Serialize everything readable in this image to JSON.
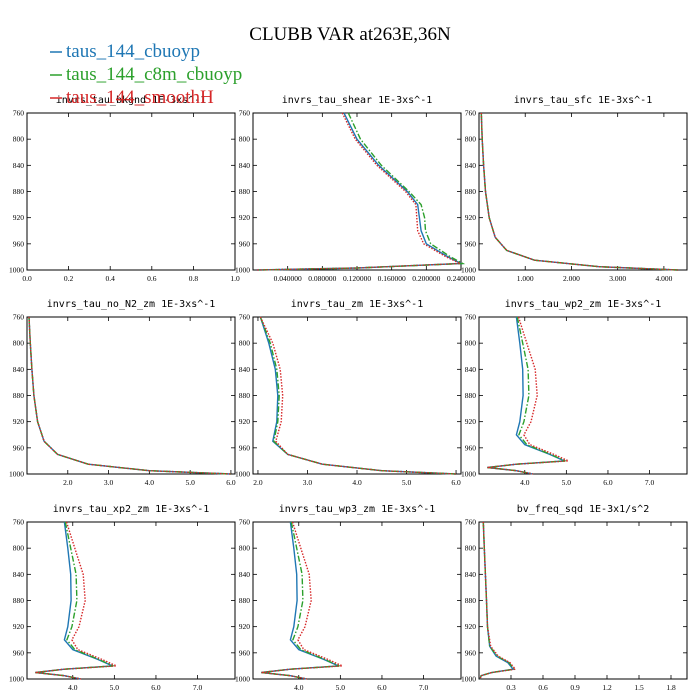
{
  "figure": {
    "title": "CLUBB VAR at263E,36N"
  },
  "legend": [
    {
      "label": "taus_144_cbuoyp",
      "color": "#1f77b4",
      "dash": "solid"
    },
    {
      "label": "taus_144_c8m_cbuoyp",
      "color": "#2ca02c",
      "dash": "dashdot"
    },
    {
      "label": "taus_144_smoothH",
      "color": "#d62728",
      "dash": "dotted"
    }
  ],
  "chart_data": [
    {
      "type": "line",
      "title": "invrs_tau_bkgnd 1E-3xs^-1",
      "xlim": [
        0,
        1
      ],
      "ylim": [
        760,
        1000
      ],
      "xticks": [
        "0.0",
        "0.2",
        "0.4",
        "0.6",
        "0.8",
        "1.0"
      ],
      "xtick_values": [
        0,
        0.2,
        0.4,
        0.6,
        0.8,
        1.0
      ],
      "yticks": [
        "760",
        "800",
        "840",
        "880",
        "920",
        "960",
        "1000"
      ],
      "ytick_values": [
        760,
        800,
        840,
        880,
        920,
        960,
        1000
      ],
      "series": []
    },
    {
      "type": "line",
      "title": "invrs_tau_shear 1E-3xs^-1",
      "xlim": [
        0.0,
        0.24
      ],
      "ylim": [
        760,
        1000
      ],
      "xticks": [
        "0.040000",
        "0.080000",
        "0.120000",
        "0.160000",
        "0.200000",
        "0.240000"
      ],
      "xtick_values": [
        0.04,
        0.08,
        0.12,
        0.16,
        0.2,
        0.24
      ],
      "yticks": [
        "760",
        "800",
        "840",
        "880",
        "920",
        "960",
        "1000"
      ],
      "ytick_values": [
        760,
        800,
        840,
        880,
        920,
        960,
        1000
      ],
      "series": [
        {
          "name": "taus_144_cbuoyp",
          "y": [
            760,
            800,
            840,
            880,
            900,
            920,
            940,
            960,
            980,
            990,
            997,
            1000
          ],
          "values": [
            0.105,
            0.12,
            0.145,
            0.178,
            0.19,
            0.192,
            0.194,
            0.2,
            0.225,
            0.24,
            0.12,
            0.005
          ]
        },
        {
          "name": "taus_144_c8m_cbuoyp",
          "y": [
            760,
            800,
            840,
            880,
            900,
            920,
            940,
            960,
            980,
            990,
            997,
            1000
          ],
          "values": [
            0.11,
            0.124,
            0.148,
            0.18,
            0.194,
            0.198,
            0.199,
            0.205,
            0.228,
            0.242,
            0.12,
            0.005
          ]
        },
        {
          "name": "taus_144_smoothH",
          "y": [
            760,
            800,
            840,
            880,
            900,
            920,
            940,
            960,
            980,
            990,
            997,
            1000
          ],
          "values": [
            0.103,
            0.118,
            0.143,
            0.176,
            0.188,
            0.189,
            0.19,
            0.197,
            0.223,
            0.239,
            0.12,
            0.005
          ]
        }
      ]
    },
    {
      "type": "line",
      "title": "invrs_tau_sfc 1E-3xs^-1",
      "xlim": [
        0.0,
        4.5
      ],
      "ylim": [
        760,
        1000
      ],
      "xticks": [
        "1.000",
        "2.000",
        "3.000",
        "4.000"
      ],
      "xtick_values": [
        1,
        2,
        3,
        4
      ],
      "yticks": [
        "760",
        "800",
        "840",
        "880",
        "920",
        "960",
        "1000"
      ],
      "ytick_values": [
        760,
        800,
        840,
        880,
        920,
        960,
        1000
      ],
      "series": [
        {
          "name": "taus_144_cbuoyp",
          "y": [
            760,
            800,
            840,
            880,
            920,
            950,
            970,
            985,
            995,
            1000
          ],
          "values": [
            0.05,
            0.07,
            0.1,
            0.14,
            0.22,
            0.35,
            0.6,
            1.2,
            2.6,
            4.3
          ]
        },
        {
          "name": "taus_144_c8m_cbuoyp",
          "y": [
            760,
            800,
            840,
            880,
            920,
            950,
            970,
            985,
            995,
            1000
          ],
          "values": [
            0.05,
            0.07,
            0.1,
            0.14,
            0.22,
            0.35,
            0.6,
            1.2,
            2.6,
            4.3
          ]
        },
        {
          "name": "taus_144_smoothH",
          "y": [
            760,
            800,
            840,
            880,
            920,
            950,
            970,
            985,
            995,
            1000
          ],
          "values": [
            0.05,
            0.07,
            0.1,
            0.14,
            0.22,
            0.35,
            0.6,
            1.2,
            2.6,
            4.3
          ]
        }
      ]
    },
    {
      "type": "line",
      "title": "invrs_tau_no_N2_zm 1E-3xs^-1",
      "xlim": [
        1.0,
        6.1
      ],
      "ylim": [
        760,
        1000
      ],
      "xticks": [
        "2.0",
        "3.0",
        "4.0",
        "5.0",
        "6.0"
      ],
      "xtick_values": [
        2,
        3,
        4,
        5,
        6
      ],
      "yticks": [
        "760",
        "800",
        "840",
        "880",
        "920",
        "960",
        "1000"
      ],
      "ytick_values": [
        760,
        800,
        840,
        880,
        920,
        960,
        1000
      ],
      "series": [
        {
          "name": "taus_144_cbuoyp",
          "y": [
            760,
            800,
            840,
            880,
            920,
            950,
            970,
            985,
            995,
            1000
          ],
          "values": [
            1.05,
            1.08,
            1.12,
            1.17,
            1.26,
            1.42,
            1.75,
            2.5,
            4.0,
            6.0
          ]
        },
        {
          "name": "taus_144_c8m_cbuoyp",
          "y": [
            760,
            800,
            840,
            880,
            920,
            950,
            970,
            985,
            995,
            1000
          ],
          "values": [
            1.05,
            1.08,
            1.12,
            1.17,
            1.26,
            1.42,
            1.75,
            2.5,
            4.0,
            6.0
          ]
        },
        {
          "name": "taus_144_smoothH",
          "y": [
            760,
            800,
            840,
            880,
            920,
            950,
            970,
            985,
            995,
            1000
          ],
          "values": [
            1.05,
            1.08,
            1.12,
            1.17,
            1.26,
            1.42,
            1.75,
            2.5,
            4.0,
            6.0
          ]
        }
      ]
    },
    {
      "type": "line",
      "title": "invrs_tau_zm 1E-3xs^-1",
      "xlim": [
        1.9,
        6.1
      ],
      "ylim": [
        760,
        1000
      ],
      "xticks": [
        "2.0",
        "3.0",
        "4.0",
        "5.0",
        "6.0"
      ],
      "xtick_values": [
        2,
        3,
        4,
        5,
        6
      ],
      "yticks": [
        "760",
        "800",
        "840",
        "880",
        "920",
        "960",
        "1000"
      ],
      "ytick_values": [
        760,
        800,
        840,
        880,
        920,
        960,
        1000
      ],
      "series": [
        {
          "name": "taus_144_cbuoyp",
          "y": [
            760,
            800,
            840,
            880,
            920,
            950,
            970,
            985,
            995,
            1000
          ],
          "values": [
            2.05,
            2.22,
            2.35,
            2.4,
            2.38,
            2.3,
            2.6,
            3.3,
            4.5,
            6.0
          ]
        },
        {
          "name": "taus_144_c8m_cbuoyp",
          "y": [
            760,
            800,
            840,
            880,
            920,
            950,
            970,
            985,
            995,
            1000
          ],
          "values": [
            2.05,
            2.25,
            2.38,
            2.43,
            2.4,
            2.32,
            2.6,
            3.3,
            4.5,
            6.0
          ]
        },
        {
          "name": "taus_144_smoothH",
          "y": [
            760,
            800,
            840,
            880,
            920,
            950,
            970,
            985,
            995,
            1000
          ],
          "values": [
            2.05,
            2.3,
            2.45,
            2.5,
            2.47,
            2.36,
            2.6,
            3.3,
            4.5,
            6.0
          ]
        }
      ]
    },
    {
      "type": "line",
      "title": "invrs_tau_wp2_zm 1E-3xs^-1",
      "xlim": [
        2.9,
        7.9
      ],
      "ylim": [
        760,
        1000
      ],
      "xticks": [
        "4.0",
        "5.0",
        "6.0",
        "7.0"
      ],
      "xtick_values": [
        4,
        5,
        6,
        7
      ],
      "yticks": [
        "760",
        "800",
        "840",
        "880",
        "920",
        "960",
        "1000"
      ],
      "ytick_values": [
        760,
        800,
        840,
        880,
        920,
        960,
        1000
      ],
      "series": [
        {
          "name": "taus_144_cbuoyp",
          "y": [
            760,
            800,
            840,
            880,
            920,
            940,
            955,
            970,
            980,
            985,
            990,
            995,
            1000
          ],
          "values": [
            3.8,
            3.88,
            3.95,
            3.96,
            3.88,
            3.8,
            4.0,
            4.6,
            4.95,
            3.8,
            3.1,
            3.8,
            4.2
          ]
        },
        {
          "name": "taus_144_c8m_cbuoyp",
          "y": [
            760,
            800,
            840,
            880,
            920,
            940,
            955,
            970,
            980,
            985,
            990,
            995,
            1000
          ],
          "values": [
            3.82,
            3.95,
            4.08,
            4.1,
            3.98,
            3.86,
            4.05,
            4.62,
            4.98,
            3.8,
            3.1,
            3.8,
            4.2
          ]
        },
        {
          "name": "taus_144_smoothH",
          "y": [
            760,
            800,
            840,
            880,
            920,
            940,
            955,
            970,
            980,
            985,
            990,
            995,
            1000
          ],
          "values": [
            3.85,
            4.05,
            4.25,
            4.3,
            4.15,
            3.98,
            4.12,
            4.7,
            5.05,
            3.8,
            3.1,
            3.8,
            4.2
          ]
        }
      ]
    },
    {
      "type": "line",
      "title": "invrs_tau_xp2_zm 1E-3xs^-1",
      "xlim": [
        2.9,
        7.9
      ],
      "ylim": [
        760,
        1000
      ],
      "xticks": [
        "4.0",
        "5.0",
        "6.0",
        "7.0"
      ],
      "xtick_values": [
        4,
        5,
        6,
        7
      ],
      "yticks": [
        "760",
        "800",
        "840",
        "880",
        "920",
        "960",
        "1000"
      ],
      "ytick_values": [
        760,
        800,
        840,
        880,
        920,
        960,
        1000
      ],
      "series": [
        {
          "name": "taus_144_cbuoyp",
          "y": [
            760,
            800,
            840,
            880,
            920,
            940,
            955,
            970,
            980,
            985,
            990,
            995,
            1000
          ],
          "values": [
            3.8,
            3.88,
            3.95,
            3.96,
            3.88,
            3.8,
            4.0,
            4.6,
            4.95,
            3.8,
            3.1,
            3.8,
            4.2
          ]
        },
        {
          "name": "taus_144_c8m_cbuoyp",
          "y": [
            760,
            800,
            840,
            880,
            920,
            940,
            955,
            970,
            980,
            985,
            990,
            995,
            1000
          ],
          "values": [
            3.82,
            3.95,
            4.08,
            4.1,
            3.98,
            3.86,
            4.05,
            4.62,
            4.98,
            3.8,
            3.1,
            3.8,
            4.2
          ]
        },
        {
          "name": "taus_144_smoothH",
          "y": [
            760,
            800,
            840,
            880,
            920,
            940,
            955,
            970,
            980,
            985,
            990,
            995,
            1000
          ],
          "values": [
            3.85,
            4.05,
            4.25,
            4.3,
            4.15,
            3.98,
            4.12,
            4.7,
            5.05,
            3.8,
            3.1,
            3.8,
            4.2
          ]
        }
      ]
    },
    {
      "type": "line",
      "title": "invrs_tau_wp3_zm 1E-3xs^-1",
      "xlim": [
        2.9,
        7.9
      ],
      "ylim": [
        760,
        1000
      ],
      "xticks": [
        "4.0",
        "5.0",
        "6.0",
        "7.0"
      ],
      "xtick_values": [
        4,
        5,
        6,
        7
      ],
      "yticks": [
        "760",
        "800",
        "840",
        "880",
        "920",
        "960",
        "1000"
      ],
      "ytick_values": [
        760,
        800,
        840,
        880,
        920,
        960,
        1000
      ],
      "series": [
        {
          "name": "taus_144_cbuoyp",
          "y": [
            760,
            800,
            840,
            880,
            920,
            940,
            955,
            970,
            980,
            985,
            990,
            995,
            1000
          ],
          "values": [
            3.8,
            3.88,
            3.95,
            3.96,
            3.88,
            3.8,
            4.0,
            4.6,
            4.95,
            3.8,
            3.1,
            3.8,
            4.2
          ]
        },
        {
          "name": "taus_144_c8m_cbuoyp",
          "y": [
            760,
            800,
            840,
            880,
            920,
            940,
            955,
            970,
            980,
            985,
            990,
            995,
            1000
          ],
          "values": [
            3.82,
            3.95,
            4.08,
            4.1,
            3.98,
            3.86,
            4.05,
            4.62,
            4.98,
            3.8,
            3.1,
            3.8,
            4.2
          ]
        },
        {
          "name": "taus_144_smoothH",
          "y": [
            760,
            800,
            840,
            880,
            920,
            940,
            955,
            970,
            980,
            985,
            990,
            995,
            1000
          ],
          "values": [
            3.85,
            4.05,
            4.25,
            4.3,
            4.15,
            3.98,
            4.12,
            4.7,
            5.05,
            3.8,
            3.1,
            3.8,
            4.2
          ]
        }
      ]
    },
    {
      "type": "line",
      "title": "bv_freq_sqd 1E-3x1/s^2",
      "xlim": [
        0.0,
        1.95
      ],
      "ylim": [
        760,
        1000
      ],
      "xticks": [
        "0.3",
        "0.6",
        "0.9",
        "1.2",
        "1.5",
        "1.8"
      ],
      "xtick_values": [
        0.3,
        0.6,
        0.9,
        1.2,
        1.5,
        1.8
      ],
      "yticks": [
        "760",
        "800",
        "840",
        "880",
        "920",
        "960",
        "1000"
      ],
      "ytick_values": [
        760,
        800,
        840,
        880,
        920,
        960,
        1000
      ],
      "series": [
        {
          "name": "taus_144_cbuoyp",
          "y": [
            760,
            800,
            840,
            880,
            920,
            950,
            965,
            975,
            985,
            990,
            995,
            1000
          ],
          "values": [
            0.04,
            0.05,
            0.06,
            0.07,
            0.08,
            0.1,
            0.16,
            0.27,
            0.32,
            0.12,
            0.02,
            0.01
          ]
        },
        {
          "name": "taus_144_c8m_cbuoyp",
          "y": [
            760,
            800,
            840,
            880,
            920,
            950,
            965,
            975,
            985,
            990,
            995,
            1000
          ],
          "values": [
            0.04,
            0.05,
            0.06,
            0.07,
            0.08,
            0.1,
            0.17,
            0.28,
            0.33,
            0.12,
            0.02,
            0.01
          ]
        },
        {
          "name": "taus_144_smoothH",
          "y": [
            760,
            800,
            840,
            880,
            920,
            950,
            965,
            975,
            985,
            990,
            995,
            1000
          ],
          "values": [
            0.04,
            0.05,
            0.06,
            0.07,
            0.08,
            0.11,
            0.18,
            0.29,
            0.34,
            0.12,
            0.02,
            0.01
          ]
        }
      ]
    }
  ]
}
